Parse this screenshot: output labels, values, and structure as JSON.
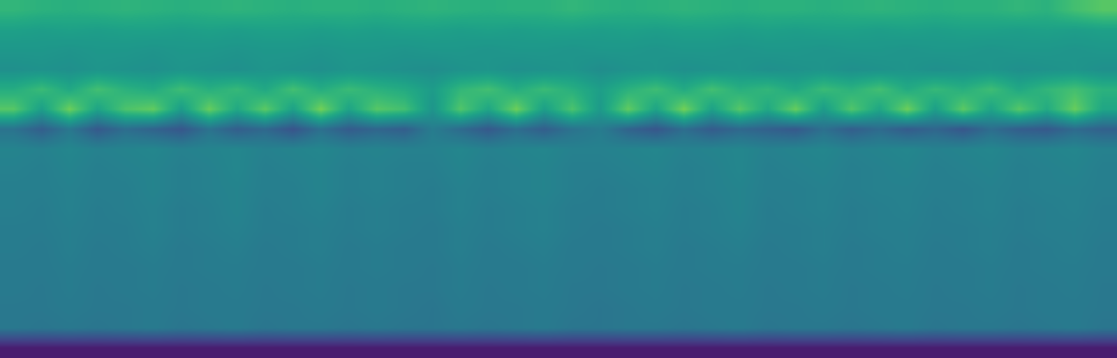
{
  "chart_data": {
    "type": "heatmap",
    "color": "viridis",
    "tick_labels": false,
    "value_range": [
      0,
      1
    ],
    "cells": [
      [
        0.66,
        0.64,
        0.63,
        0.64,
        0.65,
        0.64,
        0.63,
        0.64,
        0.65,
        0.64,
        0.63,
        0.64,
        0.64,
        0.63,
        0.64,
        0.65,
        0.64,
        0.63,
        0.64,
        0.64,
        0.66,
        0.64,
        0.63,
        0.64,
        0.65,
        0.64,
        0.63,
        0.64,
        0.64,
        0.63,
        0.64,
        0.65,
        0.64,
        0.63,
        0.64,
        0.64,
        0.66,
        0.64,
        0.7,
        0.74
      ],
      [
        0.57,
        0.56,
        0.57,
        0.56,
        0.57,
        0.57,
        0.56,
        0.57,
        0.56,
        0.57,
        0.57,
        0.56,
        0.57,
        0.56,
        0.57,
        0.57,
        0.56,
        0.57,
        0.56,
        0.57,
        0.57,
        0.56,
        0.57,
        0.56,
        0.57,
        0.57,
        0.56,
        0.57,
        0.56,
        0.57,
        0.57,
        0.56,
        0.57,
        0.56,
        0.57,
        0.57,
        0.56,
        0.57,
        0.56,
        0.57
      ],
      [
        0.53,
        0.53,
        0.52,
        0.53,
        0.53,
        0.52,
        0.53,
        0.53,
        0.52,
        0.53,
        0.53,
        0.52,
        0.53,
        0.53,
        0.52,
        0.53,
        0.53,
        0.52,
        0.53,
        0.53,
        0.52,
        0.53,
        0.53,
        0.52,
        0.53,
        0.53,
        0.52,
        0.53,
        0.53,
        0.52,
        0.53,
        0.53,
        0.52,
        0.53,
        0.53,
        0.52,
        0.53,
        0.53,
        0.52,
        0.53
      ],
      [
        0.5,
        0.51,
        0.5,
        0.52,
        0.51,
        0.5,
        0.52,
        0.51,
        0.5,
        0.52,
        0.51,
        0.5,
        0.52,
        0.51,
        0.5,
        0.49,
        0.51,
        0.52,
        0.5,
        0.51,
        0.52,
        0.49,
        0.51,
        0.52,
        0.5,
        0.51,
        0.52,
        0.5,
        0.51,
        0.52,
        0.5,
        0.51,
        0.52,
        0.5,
        0.51,
        0.52,
        0.5,
        0.51,
        0.52,
        0.5
      ],
      [
        0.62,
        0.68,
        0.6,
        0.7,
        0.64,
        0.61,
        0.69,
        0.63,
        0.67,
        0.6,
        0.7,
        0.62,
        0.68,
        0.64,
        0.61,
        0.55,
        0.66,
        0.7,
        0.62,
        0.68,
        0.63,
        0.56,
        0.64,
        0.69,
        0.61,
        0.7,
        0.63,
        0.66,
        0.6,
        0.68,
        0.64,
        0.7,
        0.61,
        0.67,
        0.63,
        0.69,
        0.6,
        0.66,
        0.7,
        0.64
      ],
      [
        0.74,
        0.56,
        0.78,
        0.58,
        0.72,
        0.76,
        0.55,
        0.77,
        0.6,
        0.75,
        0.57,
        0.79,
        0.58,
        0.74,
        0.7,
        0.52,
        0.73,
        0.59,
        0.78,
        0.56,
        0.72,
        0.54,
        0.76,
        0.58,
        0.79,
        0.57,
        0.74,
        0.6,
        0.77,
        0.55,
        0.73,
        0.59,
        0.78,
        0.56,
        0.75,
        0.58,
        0.74,
        0.61,
        0.77,
        0.59
      ],
      [
        0.38,
        0.3,
        0.4,
        0.28,
        0.36,
        0.32,
        0.27,
        0.38,
        0.3,
        0.34,
        0.26,
        0.37,
        0.29,
        0.33,
        0.3,
        0.42,
        0.35,
        0.28,
        0.36,
        0.3,
        0.38,
        0.42,
        0.32,
        0.27,
        0.36,
        0.29,
        0.34,
        0.31,
        0.28,
        0.37,
        0.3,
        0.35,
        0.29,
        0.33,
        0.27,
        0.36,
        0.3,
        0.28,
        0.35,
        0.31
      ],
      [
        0.45,
        0.44,
        0.46,
        0.44,
        0.45,
        0.46,
        0.44,
        0.45,
        0.46,
        0.44,
        0.45,
        0.46,
        0.44,
        0.45,
        0.44,
        0.44,
        0.46,
        0.44,
        0.45,
        0.46,
        0.44,
        0.44,
        0.45,
        0.46,
        0.44,
        0.45,
        0.46,
        0.44,
        0.45,
        0.46,
        0.44,
        0.45,
        0.46,
        0.44,
        0.45,
        0.46,
        0.44,
        0.45,
        0.46,
        0.44
      ],
      [
        0.44,
        0.43,
        0.45,
        0.43,
        0.44,
        0.45,
        0.43,
        0.44,
        0.46,
        0.43,
        0.44,
        0.45,
        0.43,
        0.44,
        0.43,
        0.43,
        0.45,
        0.43,
        0.44,
        0.45,
        0.43,
        0.43,
        0.44,
        0.45,
        0.43,
        0.44,
        0.46,
        0.43,
        0.44,
        0.45,
        0.43,
        0.44,
        0.45,
        0.43,
        0.44,
        0.45,
        0.43,
        0.44,
        0.45,
        0.43
      ],
      [
        0.43,
        0.43,
        0.44,
        0.43,
        0.43,
        0.45,
        0.43,
        0.44,
        0.45,
        0.43,
        0.43,
        0.45,
        0.43,
        0.44,
        0.43,
        0.42,
        0.44,
        0.43,
        0.44,
        0.45,
        0.43,
        0.42,
        0.43,
        0.44,
        0.43,
        0.44,
        0.45,
        0.43,
        0.43,
        0.44,
        0.43,
        0.44,
        0.44,
        0.43,
        0.43,
        0.44,
        0.43,
        0.44,
        0.44,
        0.43
      ],
      [
        0.43,
        0.42,
        0.44,
        0.42,
        0.43,
        0.44,
        0.42,
        0.43,
        0.45,
        0.42,
        0.43,
        0.44,
        0.42,
        0.43,
        0.42,
        0.42,
        0.44,
        0.42,
        0.43,
        0.44,
        0.42,
        0.42,
        0.43,
        0.44,
        0.42,
        0.43,
        0.45,
        0.42,
        0.43,
        0.44,
        0.42,
        0.43,
        0.44,
        0.42,
        0.43,
        0.44,
        0.42,
        0.43,
        0.44,
        0.42
      ],
      [
        0.42,
        0.42,
        0.43,
        0.42,
        0.42,
        0.44,
        0.42,
        0.43,
        0.44,
        0.42,
        0.42,
        0.43,
        0.42,
        0.43,
        0.42,
        0.41,
        0.43,
        0.42,
        0.43,
        0.44,
        0.42,
        0.41,
        0.42,
        0.43,
        0.42,
        0.43,
        0.44,
        0.42,
        0.42,
        0.43,
        0.42,
        0.43,
        0.43,
        0.42,
        0.42,
        0.43,
        0.42,
        0.43,
        0.43,
        0.42
      ],
      [
        0.42,
        0.41,
        0.43,
        0.41,
        0.42,
        0.43,
        0.41,
        0.42,
        0.43,
        0.41,
        0.42,
        0.43,
        0.41,
        0.42,
        0.41,
        0.41,
        0.43,
        0.41,
        0.42,
        0.43,
        0.41,
        0.41,
        0.42,
        0.43,
        0.41,
        0.42,
        0.43,
        0.41,
        0.42,
        0.43,
        0.41,
        0.42,
        0.43,
        0.41,
        0.42,
        0.43,
        0.41,
        0.42,
        0.43,
        0.41
      ],
      [
        0.41,
        0.41,
        0.42,
        0.41,
        0.41,
        0.42,
        0.41,
        0.42,
        0.42,
        0.41,
        0.41,
        0.42,
        0.41,
        0.42,
        0.41,
        0.4,
        0.42,
        0.41,
        0.41,
        0.42,
        0.41,
        0.4,
        0.41,
        0.42,
        0.41,
        0.42,
        0.42,
        0.41,
        0.41,
        0.42,
        0.41,
        0.42,
        0.42,
        0.41,
        0.41,
        0.42,
        0.41,
        0.42,
        0.42,
        0.41
      ],
      [
        0.41,
        0.4,
        0.42,
        0.4,
        0.41,
        0.42,
        0.4,
        0.41,
        0.42,
        0.4,
        0.41,
        0.42,
        0.4,
        0.41,
        0.4,
        0.4,
        0.42,
        0.4,
        0.41,
        0.42,
        0.4,
        0.4,
        0.41,
        0.42,
        0.4,
        0.41,
        0.42,
        0.4,
        0.41,
        0.42,
        0.4,
        0.41,
        0.42,
        0.4,
        0.41,
        0.42,
        0.4,
        0.41,
        0.42,
        0.4
      ],
      [
        0.4,
        0.4,
        0.41,
        0.4,
        0.4,
        0.41,
        0.4,
        0.41,
        0.41,
        0.4,
        0.4,
        0.41,
        0.4,
        0.41,
        0.4,
        0.39,
        0.41,
        0.4,
        0.4,
        0.41,
        0.4,
        0.39,
        0.4,
        0.41,
        0.4,
        0.41,
        0.41,
        0.4,
        0.4,
        0.41,
        0.4,
        0.41,
        0.41,
        0.4,
        0.4,
        0.41,
        0.4,
        0.41,
        0.41,
        0.4
      ],
      [
        0.4,
        0.39,
        0.4,
        0.39,
        0.4,
        0.41,
        0.39,
        0.4,
        0.41,
        0.39,
        0.4,
        0.4,
        0.39,
        0.4,
        0.39,
        0.39,
        0.4,
        0.39,
        0.4,
        0.41,
        0.39,
        0.39,
        0.4,
        0.4,
        0.39,
        0.4,
        0.41,
        0.39,
        0.4,
        0.4,
        0.39,
        0.4,
        0.41,
        0.39,
        0.4,
        0.4,
        0.39,
        0.4,
        0.41,
        0.39
      ],
      [
        0.08,
        0.08,
        0.08,
        0.08,
        0.08,
        0.08,
        0.08,
        0.08,
        0.08,
        0.08,
        0.08,
        0.08,
        0.08,
        0.08,
        0.08,
        0.08,
        0.08,
        0.08,
        0.08,
        0.08,
        0.08,
        0.08,
        0.08,
        0.08,
        0.08,
        0.08,
        0.08,
        0.08,
        0.08,
        0.08,
        0.08,
        0.08,
        0.08,
        0.08,
        0.08,
        0.08,
        0.08,
        0.08,
        0.08,
        0.08
      ]
    ]
  }
}
